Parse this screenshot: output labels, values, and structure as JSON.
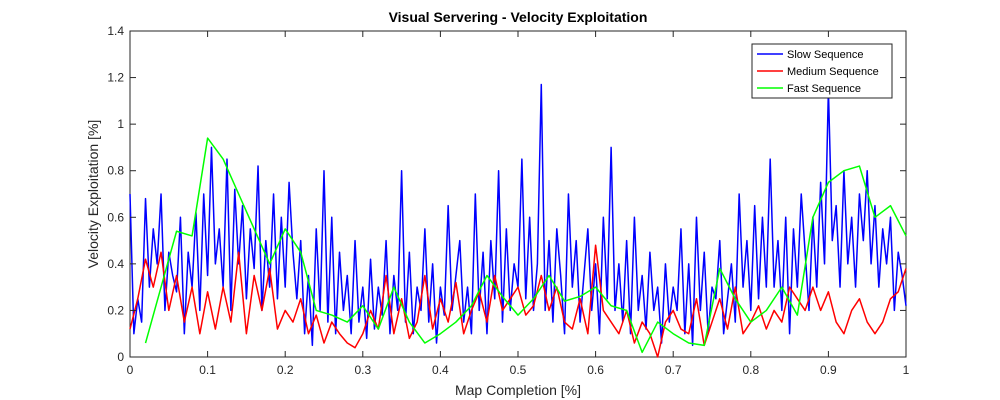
{
  "chart_data": {
    "type": "line",
    "title": "Visual Servering - Velocity Exploitation",
    "xlabel": "Map Completion [%]",
    "ylabel": "Velocity Exploitation [%]",
    "xlim": [
      0,
      1
    ],
    "ylim": [
      0,
      1.4
    ],
    "xticks": [
      "0",
      "0.1",
      "0.2",
      "0.3",
      "0.4",
      "0.5",
      "0.6",
      "0.7",
      "0.8",
      "0.9",
      "1"
    ],
    "yticks": [
      "0",
      "0.2",
      "0.4",
      "0.6",
      "0.8",
      "1",
      "1.2",
      "1.4"
    ],
    "grid": false,
    "legend_position": "top-right",
    "series": [
      {
        "name": "Slow Sequence",
        "color": "#0000ff",
        "x": [
          0.0,
          0.005,
          0.01,
          0.015,
          0.02,
          0.025,
          0.03,
          0.035,
          0.04,
          0.045,
          0.05,
          0.055,
          0.06,
          0.065,
          0.07,
          0.075,
          0.08,
          0.085,
          0.09,
          0.095,
          0.1,
          0.105,
          0.11,
          0.115,
          0.12,
          0.125,
          0.13,
          0.135,
          0.14,
          0.145,
          0.15,
          0.155,
          0.16,
          0.165,
          0.17,
          0.175,
          0.18,
          0.185,
          0.19,
          0.195,
          0.2,
          0.205,
          0.21,
          0.215,
          0.22,
          0.225,
          0.23,
          0.235,
          0.24,
          0.245,
          0.25,
          0.255,
          0.26,
          0.265,
          0.27,
          0.275,
          0.28,
          0.285,
          0.29,
          0.295,
          0.3,
          0.305,
          0.31,
          0.315,
          0.32,
          0.325,
          0.33,
          0.335,
          0.34,
          0.345,
          0.35,
          0.355,
          0.36,
          0.365,
          0.37,
          0.375,
          0.38,
          0.385,
          0.39,
          0.395,
          0.4,
          0.405,
          0.41,
          0.415,
          0.42,
          0.425,
          0.43,
          0.435,
          0.44,
          0.445,
          0.45,
          0.455,
          0.46,
          0.465,
          0.47,
          0.475,
          0.48,
          0.485,
          0.49,
          0.495,
          0.5,
          0.505,
          0.51,
          0.515,
          0.52,
          0.525,
          0.53,
          0.535,
          0.54,
          0.545,
          0.55,
          0.555,
          0.56,
          0.565,
          0.57,
          0.575,
          0.58,
          0.585,
          0.59,
          0.595,
          0.6,
          0.605,
          0.61,
          0.615,
          0.62,
          0.625,
          0.63,
          0.635,
          0.64,
          0.645,
          0.65,
          0.655,
          0.66,
          0.665,
          0.67,
          0.675,
          0.68,
          0.685,
          0.69,
          0.695,
          0.7,
          0.705,
          0.71,
          0.715,
          0.72,
          0.725,
          0.73,
          0.735,
          0.74,
          0.745,
          0.75,
          0.755,
          0.76,
          0.765,
          0.77,
          0.775,
          0.78,
          0.785,
          0.79,
          0.795,
          0.8,
          0.805,
          0.81,
          0.815,
          0.82,
          0.825,
          0.83,
          0.835,
          0.84,
          0.845,
          0.85,
          0.855,
          0.86,
          0.865,
          0.87,
          0.875,
          0.88,
          0.885,
          0.89,
          0.895,
          0.9,
          0.905,
          0.91,
          0.915,
          0.92,
          0.925,
          0.93,
          0.935,
          0.94,
          0.945,
          0.95,
          0.955,
          0.96,
          0.965,
          0.97,
          0.975,
          0.98,
          0.985,
          0.99,
          0.995,
          1.0
        ],
        "y": [
          0.7,
          0.1,
          0.25,
          0.15,
          0.68,
          0.3,
          0.55,
          0.4,
          0.7,
          0.2,
          0.45,
          0.35,
          0.28,
          0.6,
          0.1,
          0.45,
          0.3,
          0.62,
          0.2,
          0.7,
          0.35,
          0.9,
          0.4,
          0.55,
          0.3,
          0.85,
          0.2,
          0.72,
          0.4,
          0.65,
          0.25,
          0.55,
          0.38,
          0.82,
          0.2,
          0.5,
          0.3,
          0.7,
          0.25,
          0.6,
          0.3,
          0.75,
          0.45,
          0.25,
          0.5,
          0.1,
          0.35,
          0.05,
          0.55,
          0.2,
          0.8,
          0.15,
          0.6,
          0.1,
          0.45,
          0.2,
          0.35,
          0.1,
          0.5,
          0.15,
          0.3,
          0.08,
          0.42,
          0.12,
          0.3,
          0.18,
          0.5,
          0.1,
          0.35,
          0.2,
          0.8,
          0.15,
          0.45,
          0.1,
          0.3,
          0.2,
          0.55,
          0.15,
          0.4,
          0.06,
          0.3,
          0.18,
          0.65,
          0.2,
          0.35,
          0.5,
          0.15,
          0.3,
          0.1,
          0.7,
          0.2,
          0.45,
          0.1,
          0.5,
          0.25,
          0.8,
          0.15,
          0.55,
          0.2,
          0.4,
          0.3,
          0.85,
          0.25,
          0.6,
          0.2,
          0.4,
          1.17,
          0.2,
          0.5,
          0.15,
          0.55,
          0.35,
          0.1,
          0.7,
          0.3,
          0.5,
          0.15,
          0.35,
          0.55,
          0.2,
          0.4,
          0.1,
          0.6,
          0.25,
          0.9,
          0.2,
          0.4,
          0.15,
          0.5,
          0.1,
          0.6,
          0.2,
          0.35,
          0.12,
          0.45,
          0.2,
          0.3,
          0.06,
          0.4,
          0.15,
          0.3,
          0.2,
          0.55,
          0.1,
          0.4,
          0.05,
          0.6,
          0.2,
          0.45,
          0.1,
          0.3,
          0.25,
          0.5,
          0.1,
          0.25,
          0.4,
          0.15,
          0.7,
          0.3,
          0.5,
          0.2,
          0.65,
          0.25,
          0.6,
          0.3,
          0.85,
          0.3,
          0.5,
          0.2,
          0.6,
          0.1,
          0.55,
          0.3,
          0.7,
          0.45,
          0.2,
          0.6,
          0.3,
          0.75,
          0.4,
          1.15,
          0.5,
          0.65,
          0.3,
          0.8,
          0.4,
          0.6,
          0.3,
          0.7,
          0.5,
          0.8,
          0.4,
          0.65,
          0.3,
          0.55,
          0.4,
          0.6,
          0.2,
          0.45,
          0.35,
          0.22
        ]
      },
      {
        "name": "Medium Sequence",
        "color": "#ff0000",
        "x": [
          0.0,
          0.01,
          0.02,
          0.03,
          0.04,
          0.05,
          0.06,
          0.07,
          0.08,
          0.09,
          0.1,
          0.11,
          0.12,
          0.13,
          0.14,
          0.15,
          0.16,
          0.17,
          0.18,
          0.19,
          0.2,
          0.21,
          0.22,
          0.23,
          0.24,
          0.25,
          0.26,
          0.27,
          0.28,
          0.29,
          0.3,
          0.31,
          0.32,
          0.33,
          0.34,
          0.35,
          0.36,
          0.37,
          0.38,
          0.39,
          0.4,
          0.41,
          0.42,
          0.43,
          0.44,
          0.45,
          0.46,
          0.47,
          0.48,
          0.49,
          0.5,
          0.51,
          0.52,
          0.53,
          0.54,
          0.55,
          0.56,
          0.57,
          0.58,
          0.59,
          0.6,
          0.61,
          0.62,
          0.63,
          0.64,
          0.65,
          0.66,
          0.67,
          0.68,
          0.69,
          0.7,
          0.71,
          0.72,
          0.73,
          0.74,
          0.75,
          0.76,
          0.77,
          0.78,
          0.79,
          0.8,
          0.81,
          0.82,
          0.83,
          0.84,
          0.85,
          0.86,
          0.87,
          0.88,
          0.89,
          0.9,
          0.91,
          0.92,
          0.93,
          0.94,
          0.95,
          0.96,
          0.97,
          0.98,
          0.99,
          1.0
        ],
        "y": [
          0.12,
          0.25,
          0.42,
          0.3,
          0.45,
          0.2,
          0.35,
          0.15,
          0.3,
          0.1,
          0.28,
          0.12,
          0.3,
          0.15,
          0.45,
          0.1,
          0.35,
          0.2,
          0.38,
          0.12,
          0.2,
          0.15,
          0.25,
          0.1,
          0.18,
          0.06,
          0.15,
          0.1,
          0.06,
          0.04,
          0.1,
          0.2,
          0.12,
          0.35,
          0.1,
          0.25,
          0.08,
          0.15,
          0.35,
          0.12,
          0.25,
          0.15,
          0.32,
          0.1,
          0.2,
          0.28,
          0.15,
          0.35,
          0.2,
          0.25,
          0.3,
          0.18,
          0.22,
          0.35,
          0.2,
          0.3,
          0.15,
          0.12,
          0.25,
          0.1,
          0.48,
          0.2,
          0.15,
          0.1,
          0.2,
          0.06,
          0.15,
          0.1,
          0.0,
          0.15,
          0.2,
          0.12,
          0.1,
          0.25,
          0.05,
          0.15,
          0.25,
          0.12,
          0.3,
          0.1,
          0.15,
          0.22,
          0.12,
          0.2,
          0.15,
          0.3,
          0.25,
          0.2,
          0.3,
          0.2,
          0.28,
          0.15,
          0.1,
          0.2,
          0.25,
          0.15,
          0.1,
          0.15,
          0.25,
          0.28,
          0.38
        ]
      },
      {
        "name": "Fast Sequence",
        "color": "#00ff00",
        "x": [
          0.02,
          0.04,
          0.06,
          0.08,
          0.1,
          0.12,
          0.14,
          0.16,
          0.18,
          0.2,
          0.22,
          0.24,
          0.26,
          0.28,
          0.3,
          0.32,
          0.34,
          0.36,
          0.38,
          0.4,
          0.42,
          0.44,
          0.46,
          0.48,
          0.5,
          0.52,
          0.54,
          0.56,
          0.58,
          0.6,
          0.62,
          0.64,
          0.66,
          0.68,
          0.7,
          0.72,
          0.74,
          0.76,
          0.78,
          0.8,
          0.82,
          0.84,
          0.86,
          0.88,
          0.9,
          0.92,
          0.94,
          0.96,
          0.98,
          1.0
        ],
        "y": [
          0.06,
          0.3,
          0.54,
          0.52,
          0.94,
          0.85,
          0.7,
          0.55,
          0.4,
          0.55,
          0.45,
          0.2,
          0.18,
          0.15,
          0.22,
          0.12,
          0.3,
          0.15,
          0.06,
          0.1,
          0.15,
          0.22,
          0.35,
          0.26,
          0.18,
          0.25,
          0.35,
          0.24,
          0.26,
          0.3,
          0.22,
          0.2,
          0.02,
          0.15,
          0.1,
          0.06,
          0.05,
          0.38,
          0.25,
          0.15,
          0.2,
          0.3,
          0.18,
          0.6,
          0.75,
          0.8,
          0.82,
          0.6,
          0.65,
          0.52
        ]
      }
    ]
  }
}
